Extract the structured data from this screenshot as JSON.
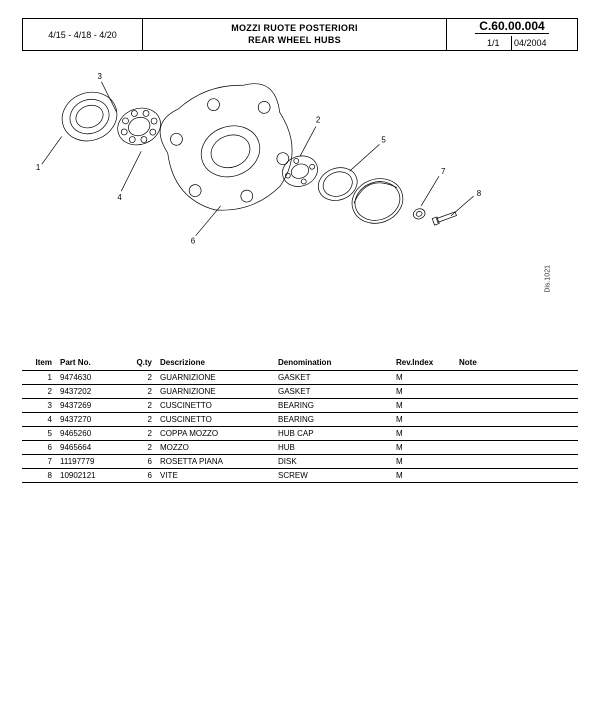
{
  "header": {
    "models": "4/15 - 4/18 - 4/20",
    "title_it": "MOZZI RUOTE POSTERIORI",
    "title_en": "REAR WHEEL HUBS",
    "code": "C.60.00.004",
    "page": "1/1",
    "date": "04/2004"
  },
  "dis_label": "Dis.1021",
  "columns": {
    "item": "Item",
    "part": "Part No.",
    "qty": "Q.ty",
    "desc": "Descrizione",
    "denom": "Denomination",
    "rev": "Rev.Index",
    "note": "Note"
  },
  "rows": [
    {
      "item": "1",
      "part": "9474630",
      "qty": "2",
      "desc": "GUARNIZIONE",
      "denom": "GASKET",
      "rev": "M",
      "note": ""
    },
    {
      "item": "2",
      "part": "9437202",
      "qty": "2",
      "desc": "GUARNIZIONE",
      "denom": "GASKET",
      "rev": "M",
      "note": ""
    },
    {
      "item": "3",
      "part": "9437269",
      "qty": "2",
      "desc": "CUSCINETTO",
      "denom": "BEARING",
      "rev": "M",
      "note": ""
    },
    {
      "item": "4",
      "part": "9437270",
      "qty": "2",
      "desc": "CUSCINETTO",
      "denom": "BEARING",
      "rev": "M",
      "note": ""
    },
    {
      "item": "5",
      "part": "9465260",
      "qty": "2",
      "desc": "COPPA MOZZO",
      "denom": "HUB CAP",
      "rev": "M",
      "note": ""
    },
    {
      "item": "6",
      "part": "9465664",
      "qty": "2",
      "desc": "MOZZO",
      "denom": "HUB",
      "rev": "M",
      "note": ""
    },
    {
      "item": "7",
      "part": "11197779",
      "qty": "6",
      "desc": "ROSETTA PIANA",
      "denom": "DISK",
      "rev": "M",
      "note": ""
    },
    {
      "item": "8",
      "part": "10902121",
      "qty": "6",
      "desc": "VITE",
      "denom": "SCREW",
      "rev": "M",
      "note": ""
    }
  ],
  "callouts": [
    "1",
    "2",
    "3",
    "4",
    "5",
    "6",
    "7",
    "8"
  ],
  "style": {
    "stroke": "#000",
    "stroke_width": 0.7,
    "label_fontsize": 8
  }
}
